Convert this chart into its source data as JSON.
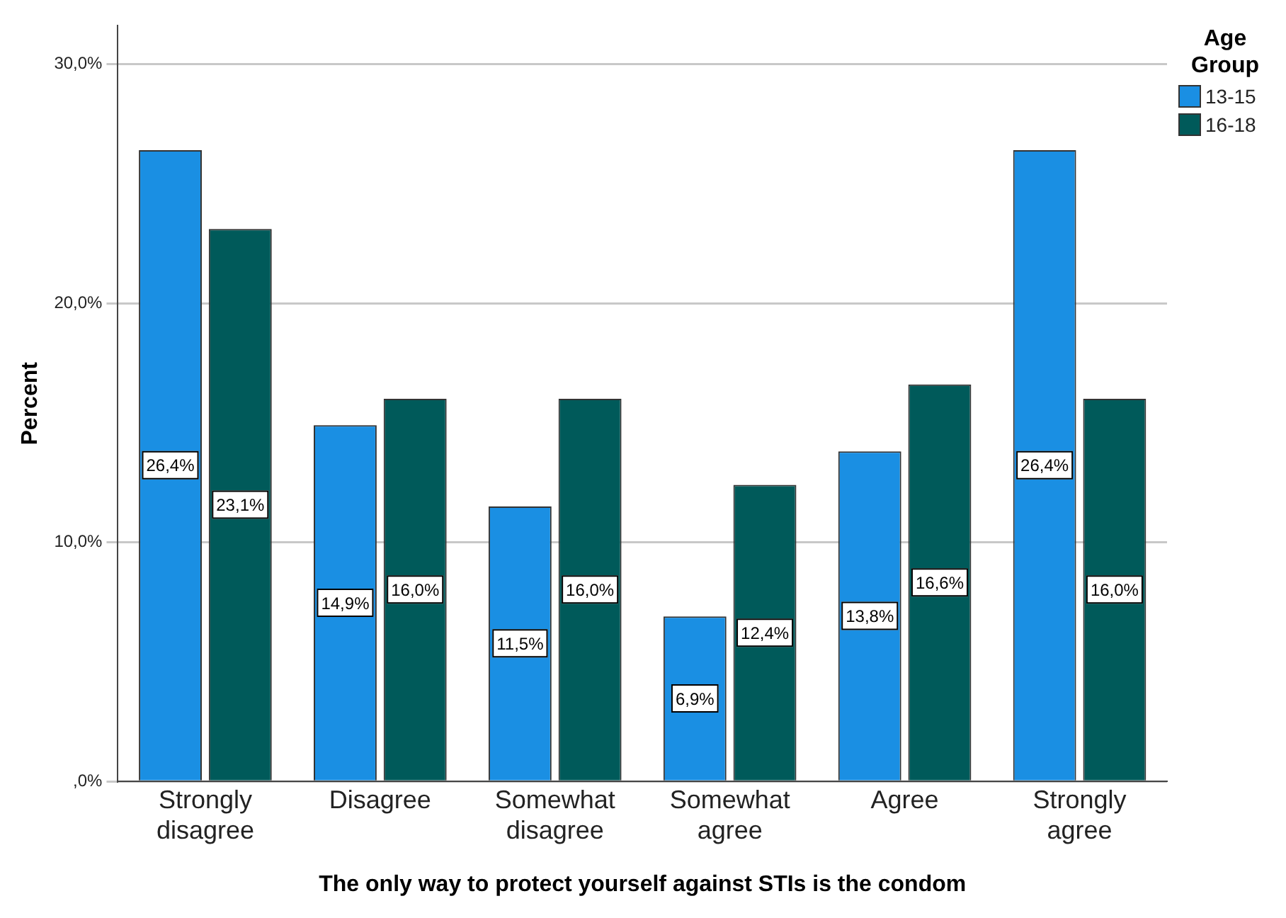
{
  "chart_data": {
    "type": "bar",
    "xlabel": "The only way to protect yourself against STIs is the condom",
    "ylabel": "Percent",
    "legend_title": "Age Group",
    "categories": [
      "Strongly disagree",
      "Disagree",
      "Somewhat disagree",
      "Somewhat agree",
      "Agree",
      "Strongly agree"
    ],
    "series": [
      {
        "name": "13-15",
        "color": "#1a8fe3",
        "values": [
          26.4,
          14.9,
          11.5,
          6.9,
          13.8,
          26.4
        ],
        "value_labels": [
          "26,4%",
          "14,9%",
          "11,5%",
          "6,9%",
          "13,8%",
          "26,4%"
        ]
      },
      {
        "name": "16-18",
        "color": "#005a5a",
        "values": [
          23.1,
          16.0,
          16.0,
          12.4,
          16.6,
          16.0
        ],
        "value_labels": [
          "23,1%",
          "16,0%",
          "16,0%",
          "12,4%",
          "16,6%",
          "16,0%"
        ]
      }
    ],
    "ylim": [
      0,
      31.6
    ],
    "yticks": [
      {
        "value": 0,
        "label": ",0%"
      },
      {
        "value": 10,
        "label": "10,0%"
      },
      {
        "value": 20,
        "label": "20,0%"
      },
      {
        "value": 30,
        "label": "30,0%"
      }
    ],
    "grid": "y",
    "legend": "top right"
  }
}
